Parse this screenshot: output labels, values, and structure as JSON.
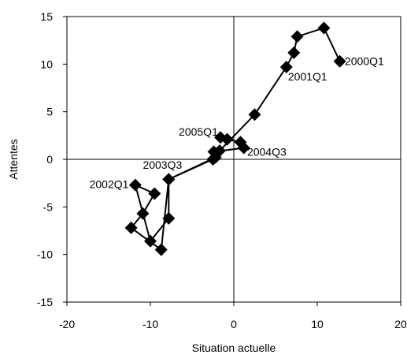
{
  "chart_data": {
    "type": "scatter",
    "title": "",
    "xlabel": "Situation actuelle",
    "ylabel": "Attentes",
    "xlim": [
      -20,
      20
    ],
    "ylim": [
      -15,
      15
    ],
    "xticks": [
      -20,
      -10,
      0,
      10,
      20
    ],
    "yticks": [
      -15,
      -10,
      -5,
      0,
      5,
      10,
      15
    ],
    "grid": false,
    "connected": true,
    "marker": "diamond",
    "color": "#000000",
    "points": [
      {
        "x": 12.7,
        "y": 10.3
      },
      {
        "x": 10.8,
        "y": 13.8
      },
      {
        "x": 7.6,
        "y": 12.9
      },
      {
        "x": 7.2,
        "y": 11.2
      },
      {
        "x": 6.3,
        "y": 9.7
      },
      {
        "x": 2.5,
        "y": 4.7
      },
      {
        "x": -1.7,
        "y": 0.9
      },
      {
        "x": -2.2,
        "y": 0.2
      },
      {
        "x": -7.8,
        "y": -2.1
      },
      {
        "x": -8.7,
        "y": -9.5
      },
      {
        "x": -12.3,
        "y": -7.2
      },
      {
        "x": -10.9,
        "y": -5.7
      },
      {
        "x": -9.5,
        "y": -3.6
      },
      {
        "x": -11.8,
        "y": -2.7
      },
      {
        "x": -10.0,
        "y": -8.6
      },
      {
        "x": -7.8,
        "y": -6.2
      },
      {
        "x": -7.8,
        "y": -2.1
      },
      {
        "x": -2.5,
        "y": 0.0
      },
      {
        "x": -2.4,
        "y": 0.8
      },
      {
        "x": 1.2,
        "y": 1.2
      },
      {
        "x": 0.8,
        "y": 1.8
      },
      {
        "x": -0.8,
        "y": 2.1
      },
      {
        "x": -1.6,
        "y": 2.3
      }
    ],
    "annotations": [
      {
        "text": "2000Q1",
        "x": 13.3,
        "y": 10.3,
        "anchor": "start"
      },
      {
        "text": "2001Q1",
        "x": 6.5,
        "y": 8.7,
        "anchor": "start"
      },
      {
        "text": "2005Q1",
        "x": -1.9,
        "y": 2.9,
        "anchor": "end"
      },
      {
        "text": "2004Q3",
        "x": 1.6,
        "y": 0.8,
        "anchor": "start"
      },
      {
        "text": "2003Q3",
        "x": -6.2,
        "y": -0.6,
        "anchor": "end"
      },
      {
        "text": "2002Q1",
        "x": -12.6,
        "y": -2.6,
        "anchor": "end"
      }
    ]
  }
}
